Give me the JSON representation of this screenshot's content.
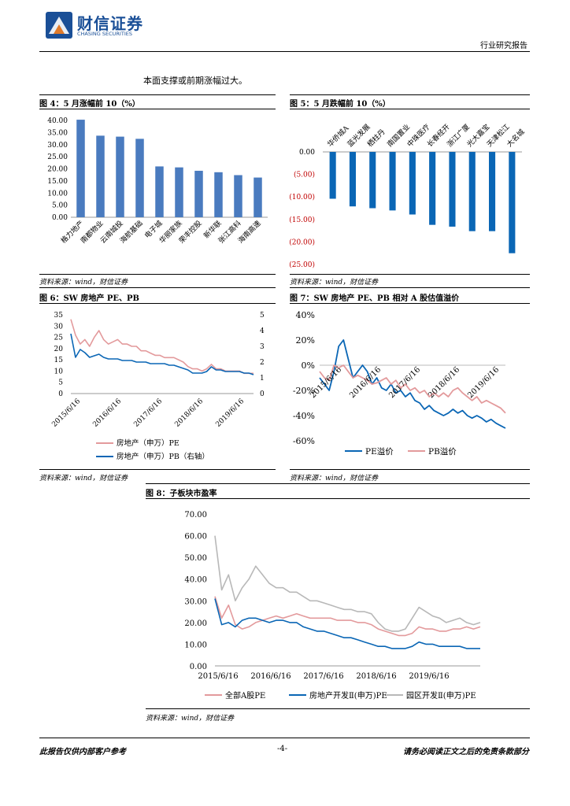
{
  "header": {
    "logo_cn": "财信证券",
    "logo_en": "CHASING SECURITIES",
    "report_type": "行业研究报告"
  },
  "body_text": "本面支撑或前期涨幅过大。",
  "colors": {
    "blue": "#4a7bbf",
    "pe_blue": "#0a66b5",
    "pb_pink": "#e39a9c",
    "gray": "#b8b8b8",
    "red_label": "#c00000"
  },
  "fig4": {
    "caption": "图 4：5 月涨幅前 10（%）",
    "source": "资料来源：wind，财信证券",
    "chart_data": {
      "type": "bar",
      "categories": [
        "格力地产",
        "南都物业",
        "云南城投",
        "海航基础",
        "电子城",
        "华丽家族",
        "荣丰控股",
        "新华联",
        "张江高科",
        "海南高速"
      ],
      "values": [
        40.3,
        33.7,
        33.3,
        32.4,
        21.0,
        20.6,
        19.2,
        18.6,
        17.4,
        16.4
      ],
      "ylim": [
        0,
        40
      ],
      "yticks": [
        "0.00",
        "5.00",
        "10.00",
        "15.00",
        "20.00",
        "25.00",
        "30.00",
        "35.00",
        "40.00"
      ],
      "color": "#4a7bbf"
    }
  },
  "fig5": {
    "caption": "图 5：5 月跌幅前 10（%）",
    "source": "资料来源：wind，财信证券",
    "chart_data": {
      "type": "bar",
      "categories": [
        "华侨城A",
        "蓝光发展",
        "栖柱丹",
        "南国置业",
        "中珠医疗",
        "长春经开",
        "浙江广厦",
        "光大嘉宝",
        "天津松江",
        "大名城"
      ],
      "values": [
        -10.4,
        -12.1,
        -12.5,
        -13.0,
        -13.9,
        -16.2,
        -16.6,
        -17.6,
        -17.6,
        -22.5
      ],
      "ylim": [
        -25,
        0
      ],
      "yticks": [
        "0.00",
        "(5.00)",
        "(10.00)",
        "(15.00)",
        "(20.00)",
        "(25.00)"
      ],
      "color": "#0a66b5"
    }
  },
  "fig6": {
    "caption": "图 6：SW 房地产 PE、PB",
    "source": "资料来源：wind，财信证券",
    "chart_data": {
      "type": "line",
      "x_ticks": [
        "2015/6/16",
        "2016/6/16",
        "2017/6/16",
        "2018/6/16",
        "2019/6/16"
      ],
      "ylim": [
        0,
        35
      ],
      "y_ticks": [
        "0",
        "5",
        "10",
        "15",
        "20",
        "25",
        "30",
        "35"
      ],
      "y2lim": [
        0,
        5
      ],
      "y2_ticks": [
        "0",
        "1",
        "2",
        "3",
        "4",
        "5"
      ],
      "series": [
        {
          "name": "房地产（申万）PE",
          "color": "#e39a9c",
          "axis": "left",
          "values": [
            33,
            26,
            22,
            24,
            21,
            25,
            28,
            24,
            22,
            23,
            24,
            22,
            22,
            21,
            21,
            19,
            19,
            18,
            17,
            17,
            16,
            16,
            16,
            15,
            14,
            12,
            11,
            11,
            10,
            11,
            13,
            11,
            11,
            10,
            10,
            10,
            10,
            9,
            9,
            9
          ]
        },
        {
          "name": "房地产（申万）PB（右轴）",
          "color": "#0a66b5",
          "axis": "right",
          "values": [
            3.8,
            2.3,
            2.8,
            2.6,
            2.3,
            2.4,
            2.5,
            2.3,
            2.2,
            2.2,
            2.2,
            2.1,
            2.1,
            2.1,
            2.0,
            2.0,
            2.0,
            1.9,
            1.9,
            1.9,
            1.9,
            1.8,
            1.8,
            1.7,
            1.6,
            1.5,
            1.3,
            1.3,
            1.3,
            1.4,
            1.7,
            1.5,
            1.5,
            1.4,
            1.4,
            1.4,
            1.4,
            1.3,
            1.3,
            1.2
          ]
        }
      ]
    }
  },
  "fig7": {
    "caption": "图 7：SW 房地产 PE、PB 相对 A 股估值溢价",
    "source": "资料来源：wind，财信证券",
    "chart_data": {
      "type": "line",
      "x_ticks": [
        "2015/6/16",
        "2016/6/16",
        "2017/6/16",
        "2018/6/16",
        "2019/6/16"
      ],
      "ylim": [
        -60,
        40
      ],
      "y_ticks": [
        "-60%",
        "-40%",
        "-20%",
        "0%",
        "20%",
        "40%"
      ],
      "series": [
        {
          "name": "PE溢价",
          "color": "#0a66b5",
          "values": [
            -10,
            -15,
            -20,
            -5,
            15,
            20,
            5,
            -10,
            -5,
            0,
            -5,
            -15,
            -10,
            -18,
            -20,
            -15,
            -22,
            -20,
            -25,
            -22,
            -28,
            -30,
            -35,
            -32,
            -36,
            -38,
            -40,
            -38,
            -35,
            -38,
            -36,
            -40,
            -42,
            -40,
            -42,
            -45,
            -43,
            -46,
            -48,
            -50
          ]
        },
        {
          "name": "PB溢价",
          "color": "#e39a9c",
          "values": [
            -5,
            -10,
            -12,
            0,
            -2,
            0,
            -5,
            -10,
            -8,
            -10,
            -12,
            -15,
            -14,
            -12,
            -10,
            -15,
            -12,
            -18,
            -15,
            -20,
            -18,
            -22,
            -20,
            -25,
            -22,
            -25,
            -22,
            -25,
            -20,
            -18,
            -22,
            -25,
            -28,
            -25,
            -30,
            -28,
            -30,
            -32,
            -34,
            -38
          ]
        }
      ]
    }
  },
  "fig8": {
    "caption": "图 8：子板块市盈率",
    "source": "资料来源：wind，财信证券",
    "chart_data": {
      "type": "line",
      "x_ticks": [
        "2015/6/16",
        "2016/6/16",
        "2017/6/16",
        "2018/6/16",
        "2019/6/16"
      ],
      "ylim": [
        0,
        70
      ],
      "y_ticks": [
        "0.00",
        "10.00",
        "20.00",
        "30.00",
        "40.00",
        "50.00",
        "60.00",
        "70.00"
      ],
      "series": [
        {
          "name": "全部A股PE",
          "color": "#e39a9c",
          "values": [
            32,
            22,
            28,
            19,
            17,
            18,
            20,
            21,
            22,
            23,
            22,
            23,
            24,
            23,
            22,
            22,
            22,
            22,
            21,
            21,
            21,
            20,
            20,
            19,
            17,
            16,
            15,
            14,
            14,
            15,
            18,
            17,
            17,
            16,
            16,
            17,
            17,
            18,
            17,
            18
          ]
        },
        {
          "name": "房地产开发Ⅱ(申万)PE",
          "color": "#0a66b5",
          "values": [
            31,
            19,
            20,
            18,
            21,
            22,
            22,
            21,
            20,
            21,
            21,
            20,
            20,
            18,
            17,
            16,
            16,
            15,
            14,
            13,
            13,
            12,
            11,
            10,
            9,
            9,
            8,
            8,
            8,
            9,
            11,
            10,
            10,
            9,
            9,
            9,
            9,
            8,
            8,
            8
          ]
        },
        {
          "name": "园区开发Ⅱ(申万)PE",
          "color": "#b8b8b8",
          "values": [
            60,
            35,
            42,
            30,
            36,
            40,
            46,
            42,
            38,
            36,
            36,
            34,
            34,
            32,
            30,
            30,
            29,
            28,
            27,
            26,
            26,
            25,
            25,
            24,
            20,
            17,
            16,
            16,
            17,
            22,
            27,
            25,
            23,
            22,
            20,
            21,
            22,
            20,
            19,
            20
          ]
        }
      ]
    }
  },
  "footer": {
    "left": "此报告仅供内部客户参考",
    "page": "-4-",
    "right": "请务必阅读正文之后的免责条款部分"
  }
}
